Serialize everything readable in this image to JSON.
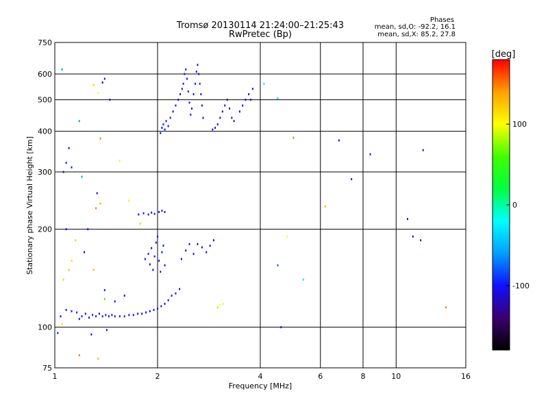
{
  "header": {
    "title_line1": "Tromsø 20130114 21:24:00–21:25:43",
    "title_line2": "RwPretec (Bp)"
  },
  "phases": {
    "heading": "Phases",
    "line_o": "mean, sd,O: -92.2, 16.1",
    "line_x": "mean, sd,X:  85.2, 27.8"
  },
  "colorbar": {
    "unit_label": "[deg]",
    "range": [
      -180,
      180
    ],
    "ticks": [
      {
        "value": 100,
        "label": "100"
      },
      {
        "value": 0,
        "label": "0"
      },
      {
        "value": -100,
        "label": "-100"
      }
    ],
    "colors": [
      "#000000",
      "#3a0070",
      "#1010ff",
      "#00a0ff",
      "#00ffff",
      "#00ff40",
      "#40ff00",
      "#ffff00",
      "#ffa000",
      "#ff0000"
    ]
  },
  "chart_data": {
    "type": "scatter",
    "title": "Tromsø 20130114 21:24:00–21:25:43",
    "subtitle": "RwPretec (Bp)",
    "xlabel": "Frequency [MHz]",
    "ylabel": "Stationary phase Virtual Height [km]",
    "xscale": "log2",
    "yscale": "log",
    "xlim": [
      1,
      16
    ],
    "ylim": [
      75,
      750
    ],
    "grid": true,
    "xticks": [
      {
        "value": 1,
        "label": "1"
      },
      {
        "value": 2,
        "label": "2"
      },
      {
        "value": 4,
        "label": "4"
      },
      {
        "value": 6,
        "label": "6"
      },
      {
        "value": 8,
        "label": "8"
      },
      {
        "value": 10,
        "label": "10"
      },
      {
        "value": 16,
        "label": "16"
      }
    ],
    "yticks": [
      {
        "value": 75,
        "label": "75"
      },
      {
        "value": 100,
        "label": "100"
      },
      {
        "value": 200,
        "label": "200"
      },
      {
        "value": 300,
        "label": "300"
      },
      {
        "value": 400,
        "label": "400"
      },
      {
        "value": 500,
        "label": "500"
      },
      {
        "value": 600,
        "label": "600"
      },
      {
        "value": 750,
        "label": "750"
      }
    ],
    "vgrid": [
      1,
      2,
      4,
      6,
      8,
      10,
      16
    ],
    "hgrid": [
      75,
      100,
      200,
      300,
      400,
      500,
      600,
      750
    ],
    "color_scale": "phase [deg]",
    "points": [
      [
        1.04,
        108,
        -100
      ],
      [
        1.08,
        113,
        -100
      ],
      [
        1.12,
        112,
        -100
      ],
      [
        1.16,
        111,
        -100
      ],
      [
        1.18,
        106,
        -100
      ],
      [
        1.2,
        108,
        -100
      ],
      [
        1.23,
        110,
        -100
      ],
      [
        1.26,
        107,
        -100
      ],
      [
        1.29,
        109,
        -100
      ],
      [
        1.32,
        108,
        -100
      ],
      [
        1.35,
        110,
        -100
      ],
      [
        1.38,
        108,
        -100
      ],
      [
        1.41,
        109,
        -100
      ],
      [
        1.44,
        108,
        -100
      ],
      [
        1.47,
        109,
        -100
      ],
      [
        1.5,
        108,
        -100
      ],
      [
        1.55,
        108,
        -100
      ],
      [
        1.6,
        108,
        -100
      ],
      [
        1.65,
        109,
        -100
      ],
      [
        1.7,
        109,
        -100
      ],
      [
        1.75,
        110,
        -100
      ],
      [
        1.8,
        110,
        -100
      ],
      [
        1.85,
        111,
        -100
      ],
      [
        1.9,
        112,
        -100
      ],
      [
        1.95,
        113,
        -100
      ],
      [
        2.0,
        114,
        -100
      ],
      [
        2.05,
        116,
        -100
      ],
      [
        2.1,
        118,
        -100
      ],
      [
        2.15,
        121,
        -100
      ],
      [
        2.2,
        125,
        -100
      ],
      [
        2.26,
        127,
        -100
      ],
      [
        2.32,
        131,
        -100
      ],
      [
        1.76,
        222,
        -100
      ],
      [
        1.82,
        224,
        -100
      ],
      [
        1.88,
        222,
        -100
      ],
      [
        1.92,
        225,
        -100
      ],
      [
        1.96,
        223,
        -100
      ],
      [
        2.02,
        226,
        -100
      ],
      [
        2.06,
        228,
        -100
      ],
      [
        2.1,
        226,
        -100
      ],
      [
        1.84,
        162,
        -100
      ],
      [
        1.88,
        168,
        -100
      ],
      [
        1.9,
        156,
        -100
      ],
      [
        1.92,
        175,
        -100
      ],
      [
        1.94,
        150,
        -100
      ],
      [
        1.96,
        165,
        -100
      ],
      [
        1.98,
        182,
        -100
      ],
      [
        2.0,
        190,
        -100
      ],
      [
        2.02,
        160,
        -100
      ],
      [
        2.04,
        148,
        -100
      ],
      [
        2.06,
        170,
        -100
      ],
      [
        2.08,
        178,
        -100
      ],
      [
        2.1,
        155,
        -100
      ],
      [
        2.35,
        162,
        -100
      ],
      [
        2.42,
        172,
        -100
      ],
      [
        2.48,
        180,
        -100
      ],
      [
        2.55,
        168,
        -100
      ],
      [
        2.62,
        180,
        -100
      ],
      [
        2.7,
        176,
        -100
      ],
      [
        2.78,
        170,
        -100
      ],
      [
        2.85,
        178,
        -100
      ],
      [
        2.92,
        185,
        -100
      ],
      [
        2.04,
        395,
        -100
      ],
      [
        2.06,
        410,
        -100
      ],
      [
        2.08,
        420,
        -100
      ],
      [
        2.1,
        405,
        -100
      ],
      [
        2.12,
        430,
        -100
      ],
      [
        2.15,
        415,
        -100
      ],
      [
        2.18,
        440,
        -100
      ],
      [
        2.22,
        460,
        -100
      ],
      [
        2.26,
        480,
        -100
      ],
      [
        2.3,
        500,
        -100
      ],
      [
        2.33,
        520,
        -100
      ],
      [
        2.36,
        540,
        -100
      ],
      [
        2.38,
        560,
        -100
      ],
      [
        2.4,
        600,
        -100
      ],
      [
        2.42,
        620,
        -100
      ],
      [
        2.44,
        580,
        -100
      ],
      [
        2.46,
        530,
        -100
      ],
      [
        2.48,
        490,
        -100
      ],
      [
        2.5,
        450,
        -100
      ],
      [
        2.52,
        470,
        -100
      ],
      [
        2.55,
        520,
        -100
      ],
      [
        2.58,
        560,
        -100
      ],
      [
        2.6,
        610,
        -100
      ],
      [
        2.62,
        640,
        -100
      ],
      [
        2.64,
        600,
        -100
      ],
      [
        2.66,
        560,
        -100
      ],
      [
        2.68,
        520,
        -100
      ],
      [
        2.7,
        480,
        -100
      ],
      [
        2.72,
        440,
        -100
      ],
      [
        2.9,
        405,
        -120
      ],
      [
        2.95,
        410,
        -120
      ],
      [
        3.0,
        420,
        -120
      ],
      [
        3.05,
        440,
        -120
      ],
      [
        3.1,
        460,
        -120
      ],
      [
        3.15,
        480,
        -120
      ],
      [
        3.2,
        500,
        -120
      ],
      [
        3.25,
        470,
        -120
      ],
      [
        3.3,
        440,
        -120
      ],
      [
        3.35,
        430,
        -120
      ],
      [
        3.48,
        460,
        -110
      ],
      [
        3.55,
        480,
        -110
      ],
      [
        3.62,
        500,
        -110
      ],
      [
        3.7,
        520,
        -110
      ],
      [
        3.75,
        500,
        -110
      ],
      [
        3.8,
        540,
        -110
      ],
      [
        1.05,
        620,
        -60
      ],
      [
        1.1,
        355,
        -100
      ],
      [
        1.06,
        300,
        -100
      ],
      [
        1.08,
        320,
        -100
      ],
      [
        1.12,
        310,
        -100
      ],
      [
        1.18,
        430,
        -60
      ],
      [
        1.2,
        290,
        -60
      ],
      [
        1.25,
        200,
        -100
      ],
      [
        1.3,
        555,
        120
      ],
      [
        1.34,
        525,
        100
      ],
      [
        1.38,
        565,
        -150
      ],
      [
        1.36,
        240,
        130
      ],
      [
        1.4,
        580,
        -100
      ],
      [
        1.32,
        232,
        150
      ],
      [
        1.45,
        500,
        -100
      ],
      [
        1.55,
        325,
        100
      ],
      [
        1.65,
        245,
        110
      ],
      [
        1.78,
        208,
        120
      ],
      [
        1.36,
        380,
        150
      ],
      [
        1.33,
        258,
        -100
      ],
      [
        1.06,
        140,
        80
      ],
      [
        1.1,
        150,
        130
      ],
      [
        1.12,
        160,
        120
      ],
      [
        1.08,
        200,
        -100
      ],
      [
        1.15,
        185,
        120
      ],
      [
        1.22,
        170,
        -100
      ],
      [
        1.3,
        150,
        130
      ],
      [
        1.4,
        130,
        -100
      ],
      [
        1.5,
        120,
        -120
      ],
      [
        1.6,
        125,
        -100
      ],
      [
        1.02,
        96,
        -100
      ],
      [
        1.05,
        102,
        120
      ],
      [
        1.28,
        95,
        -100
      ],
      [
        1.42,
        98,
        -100
      ],
      [
        1.18,
        82,
        150
      ],
      [
        1.34,
        80,
        130
      ],
      [
        1.4,
        122,
        60
      ],
      [
        3.05,
        117,
        100
      ],
      [
        3.0,
        115,
        80
      ],
      [
        3.12,
        118,
        100
      ],
      [
        4.1,
        560,
        -30
      ],
      [
        4.5,
        155,
        -80
      ],
      [
        4.8,
        190,
        100
      ],
      [
        5.0,
        382,
        150
      ],
      [
        5.35,
        140,
        -30
      ],
      [
        4.5,
        505,
        -40
      ],
      [
        4.6,
        100,
        -100
      ],
      [
        6.2,
        235,
        130
      ],
      [
        6.8,
        375,
        -100
      ],
      [
        7.4,
        285,
        -100
      ],
      [
        8.4,
        340,
        -100
      ],
      [
        10.8,
        215,
        -100
      ],
      [
        11.2,
        190,
        -100
      ],
      [
        11.8,
        185,
        -100
      ],
      [
        12.0,
        350,
        -100
      ],
      [
        14.0,
        115,
        150
      ]
    ]
  }
}
